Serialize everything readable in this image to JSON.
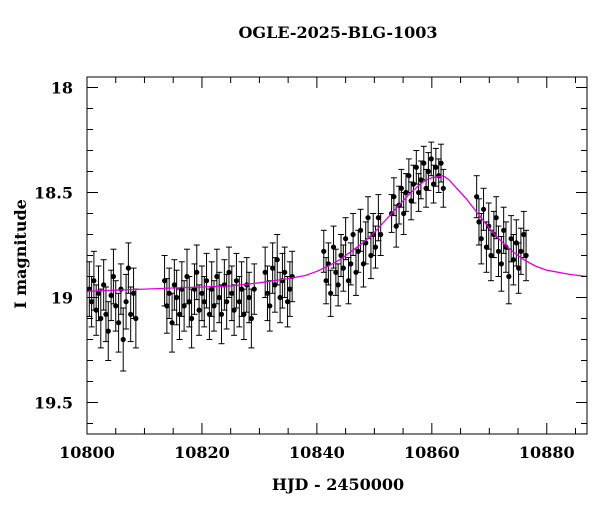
{
  "chart_data": {
    "type": "scatter",
    "title": "OGLE-2025-BLG-1003",
    "xlabel": "HJD - 2450000",
    "ylabel": "I magnitude",
    "xlim": [
      10800,
      10887
    ],
    "ylim": [
      19.65,
      17.95
    ],
    "y_inverted": true,
    "x_ticks": [
      10800,
      10820,
      10840,
      10860,
      10880
    ],
    "y_ticks": [
      18,
      18.5,
      19,
      19.5
    ],
    "x_minor_step": 5,
    "y_minor_step": 0.1,
    "grid": false,
    "marker_color": "#000000",
    "model_color": "#e000e0",
    "series": [
      {
        "style": "points-with-errorbars",
        "points": [
          [
            10800.4,
            18.96
          ],
          [
            10800.8,
            19.02
          ],
          [
            10801.2,
            18.92
          ],
          [
            10801.6,
            19.06
          ],
          [
            10802.0,
            18.98
          ],
          [
            10802.4,
            19.1
          ],
          [
            10802.9,
            18.94
          ],
          [
            10803.3,
            19.08
          ],
          [
            10803.7,
            19.16
          ],
          [
            10804.2,
            18.99
          ],
          [
            10804.6,
            18.9
          ],
          [
            10805.0,
            19.04
          ],
          [
            10805.5,
            19.12
          ],
          [
            10805.9,
            18.96
          ],
          [
            10806.3,
            19.2
          ],
          [
            10806.8,
            19.02
          ],
          [
            10807.2,
            18.86
          ],
          [
            10807.6,
            19.08
          ],
          [
            10808.1,
            18.98
          ],
          [
            10808.5,
            19.1
          ],
          [
            10813.5,
            18.92
          ],
          [
            10813.9,
            19.04
          ],
          [
            10814.3,
            18.98
          ],
          [
            10814.8,
            19.12
          ],
          [
            10815.2,
            18.94
          ],
          [
            10815.6,
            19.0
          ],
          [
            10816.1,
            19.08
          ],
          [
            10816.5,
            18.96
          ],
          [
            10816.9,
            19.04
          ],
          [
            10817.4,
            18.9
          ],
          [
            10817.8,
            19.02
          ],
          [
            10818.2,
            19.1
          ],
          [
            10818.7,
            18.96
          ],
          [
            10819.1,
            18.88
          ],
          [
            10819.5,
            19.06
          ],
          [
            10820.0,
            18.98
          ],
          [
            10820.4,
            19.02
          ],
          [
            10820.8,
            18.92
          ],
          [
            10821.3,
            19.08
          ],
          [
            10821.7,
            18.96
          ],
          [
            10822.1,
            19.04
          ],
          [
            10822.6,
            18.9
          ],
          [
            10823.0,
            19.0
          ],
          [
            10823.4,
            19.08
          ],
          [
            10823.9,
            18.94
          ],
          [
            10824.3,
            19.02
          ],
          [
            10824.7,
            18.88
          ],
          [
            10825.2,
            18.98
          ],
          [
            10825.6,
            19.06
          ],
          [
            10826.0,
            18.92
          ],
          [
            10826.5,
            19.02
          ],
          [
            10826.9,
            18.96
          ],
          [
            10827.3,
            19.08
          ],
          [
            10827.8,
            18.94
          ],
          [
            10828.2,
            19.0
          ],
          [
            10828.6,
            19.1
          ],
          [
            10829.1,
            18.96
          ],
          [
            10831.0,
            18.88
          ],
          [
            10831.4,
            18.98
          ],
          [
            10831.8,
            19.04
          ],
          [
            10832.3,
            18.86
          ],
          [
            10832.7,
            18.94
          ],
          [
            10833.1,
            18.82
          ],
          [
            10833.6,
            19.0
          ],
          [
            10834.0,
            18.92
          ],
          [
            10834.4,
            18.88
          ],
          [
            10834.9,
            19.02
          ],
          [
            10835.3,
            18.96
          ],
          [
            10835.7,
            18.9
          ],
          [
            10841.2,
            18.78
          ],
          [
            10841.6,
            18.92
          ],
          [
            10842.0,
            18.84
          ],
          [
            10842.4,
            18.98
          ],
          [
            10842.9,
            18.76
          ],
          [
            10843.3,
            18.88
          ],
          [
            10843.7,
            18.94
          ],
          [
            10844.2,
            18.8
          ],
          [
            10844.6,
            18.86
          ],
          [
            10845.0,
            18.72
          ],
          [
            10845.5,
            18.92
          ],
          [
            10845.9,
            18.84
          ],
          [
            10846.3,
            18.7
          ],
          [
            10846.8,
            18.88
          ],
          [
            10847.2,
            18.78
          ],
          [
            10847.6,
            18.68
          ],
          [
            10848.1,
            18.84
          ],
          [
            10848.5,
            18.74
          ],
          [
            10848.9,
            18.62
          ],
          [
            10849.4,
            18.8
          ],
          [
            10849.8,
            18.7
          ],
          [
            10850.2,
            18.76
          ],
          [
            10850.7,
            18.62
          ],
          [
            10851.1,
            18.7
          ],
          [
            10853.0,
            18.6
          ],
          [
            10853.4,
            18.52
          ],
          [
            10853.8,
            18.66
          ],
          [
            10854.3,
            18.56
          ],
          [
            10854.7,
            18.48
          ],
          [
            10855.1,
            18.6
          ],
          [
            10855.5,
            18.5
          ],
          [
            10856.0,
            18.42
          ],
          [
            10856.4,
            18.54
          ],
          [
            10856.8,
            18.46
          ],
          [
            10857.3,
            18.38
          ],
          [
            10857.7,
            18.5
          ],
          [
            10858.1,
            18.44
          ],
          [
            10858.6,
            18.36
          ],
          [
            10859.0,
            18.48
          ],
          [
            10859.4,
            18.4
          ],
          [
            10859.9,
            18.34
          ],
          [
            10860.3,
            18.46
          ],
          [
            10860.7,
            18.38
          ],
          [
            10861.2,
            18.42
          ],
          [
            10861.6,
            18.36
          ],
          [
            10862.0,
            18.48
          ],
          [
            10867.8,
            18.52
          ],
          [
            10868.2,
            18.64
          ],
          [
            10868.6,
            18.72
          ],
          [
            10869.0,
            18.58
          ],
          [
            10869.5,
            18.76
          ],
          [
            10869.9,
            18.66
          ],
          [
            10870.3,
            18.8
          ],
          [
            10870.8,
            18.7
          ],
          [
            10871.2,
            18.62
          ],
          [
            10871.6,
            18.78
          ],
          [
            10872.1,
            18.84
          ],
          [
            10872.5,
            18.68
          ],
          [
            10872.9,
            18.76
          ],
          [
            10873.4,
            18.9
          ],
          [
            10873.8,
            18.72
          ],
          [
            10874.2,
            18.82
          ],
          [
            10874.7,
            18.74
          ],
          [
            10875.1,
            18.86
          ],
          [
            10875.5,
            18.78
          ],
          [
            10876.0,
            18.7
          ],
          [
            10876.4,
            18.8
          ]
        ],
        "errors": [
          0.13,
          0.12,
          0.14,
          0.12,
          0.13,
          0.14,
          0.12,
          0.13,
          0.14,
          0.12,
          0.13,
          0.12,
          0.14,
          0.12,
          0.15,
          0.13,
          0.12,
          0.13,
          0.12,
          0.14,
          0.12,
          0.13,
          0.12,
          0.14,
          0.12,
          0.13,
          0.12,
          0.13,
          0.12,
          0.13,
          0.12,
          0.14,
          0.12,
          0.13,
          0.12,
          0.13,
          0.12,
          0.13,
          0.12,
          0.13,
          0.12,
          0.13,
          0.12,
          0.14,
          0.12,
          0.13,
          0.12,
          0.13,
          0.12,
          0.13,
          0.12,
          0.13,
          0.12,
          0.13,
          0.12,
          0.14,
          0.12,
          0.12,
          0.13,
          0.12,
          0.12,
          0.13,
          0.12,
          0.12,
          0.13,
          0.12,
          0.12,
          0.13,
          0.12,
          0.1,
          0.11,
          0.1,
          0.11,
          0.1,
          0.11,
          0.1,
          0.1,
          0.11,
          0.1,
          0.11,
          0.1,
          0.1,
          0.11,
          0.1,
          0.1,
          0.11,
          0.1,
          0.1,
          0.11,
          0.1,
          0.1,
          0.11,
          0.1,
          0.09,
          0.09,
          0.1,
          0.09,
          0.09,
          0.1,
          0.09,
          0.08,
          0.09,
          0.09,
          0.08,
          0.09,
          0.09,
          0.08,
          0.09,
          0.09,
          0.08,
          0.09,
          0.09,
          0.08,
          0.09,
          0.09,
          0.1,
          0.11,
          0.12,
          0.1,
          0.12,
          0.11,
          0.12,
          0.11,
          0.1,
          0.12,
          0.13,
          0.11,
          0.12,
          0.13,
          0.11,
          0.12,
          0.11,
          0.12,
          0.11,
          0.11,
          0.12
        ]
      },
      {
        "style": "model-line",
        "x": [
          10800,
          10805,
          10810,
          10815,
          10820,
          10825,
          10830,
          10835,
          10838,
          10840,
          10842,
          10844,
          10846,
          10848,
          10850,
          10852,
          10854,
          10856,
          10858,
          10859,
          10860,
          10861,
          10862,
          10863,
          10864,
          10865,
          10866,
          10868,
          10870,
          10872,
          10874,
          10876,
          10878,
          10880,
          10884,
          10887
        ],
        "y": [
          18.97,
          18.965,
          18.96,
          18.955,
          18.95,
          18.945,
          18.93,
          18.91,
          18.895,
          18.875,
          18.85,
          18.82,
          18.78,
          18.74,
          18.69,
          18.63,
          18.57,
          18.51,
          18.46,
          18.44,
          18.43,
          18.425,
          18.42,
          18.44,
          18.47,
          18.5,
          18.53,
          18.6,
          18.67,
          18.73,
          18.78,
          18.82,
          18.85,
          18.87,
          18.89,
          18.9
        ]
      }
    ]
  }
}
